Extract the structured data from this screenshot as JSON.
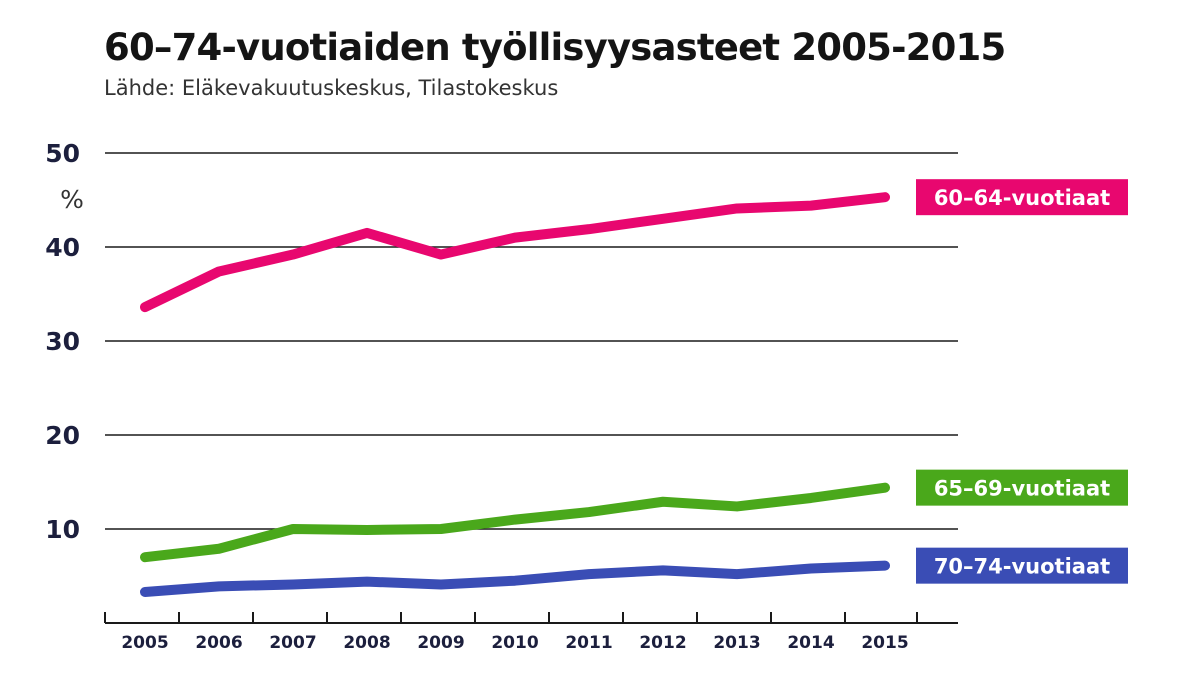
{
  "header": {
    "title": "60–74-vuotiaiden työllisyysasteet 2005-2015",
    "subtitle": "Lähde: Eläkevakuutuskeskus, Tilastokeskus"
  },
  "chart_data": {
    "type": "line",
    "title": "60–74-vuotiaiden työllisyysasteet 2005-2015",
    "subtitle": "Lähde: Eläkevakuutuskeskus, Tilastokeskus",
    "ylabel": "%",
    "xlabel": "",
    "ylim": [
      0,
      50
    ],
    "yticks": [
      10,
      20,
      30,
      40,
      50
    ],
    "x": [
      "2005",
      "2006",
      "2007",
      "2008",
      "2009",
      "2010",
      "2011",
      "2012",
      "2013",
      "2014",
      "2015"
    ],
    "grid": true,
    "legend": "right (inline labels at line ends)",
    "series": [
      {
        "name": "60–64-vuotiaat",
        "color": "#e8076f",
        "values": [
          33.6,
          37.4,
          39.2,
          41.5,
          39.2,
          41.0,
          41.9,
          43.0,
          44.1,
          44.4,
          45.3
        ]
      },
      {
        "name": "65–69-vuotiaat",
        "color": "#4aa81b",
        "values": [
          7.0,
          7.9,
          10.0,
          9.9,
          10.0,
          11.0,
          11.8,
          12.9,
          12.4,
          13.3,
          14.4
        ]
      },
      {
        "name": "70–74-vuotiaat",
        "color": "#3a4db5",
        "values": [
          3.3,
          3.9,
          4.1,
          4.4,
          4.1,
          4.5,
          5.2,
          5.6,
          5.2,
          5.8,
          6.1
        ]
      }
    ]
  }
}
